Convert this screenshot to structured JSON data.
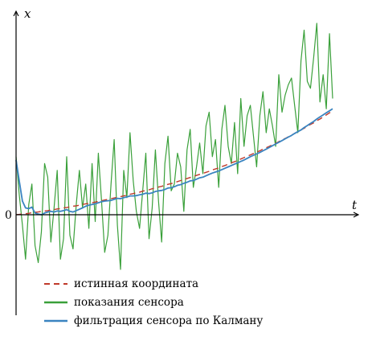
{
  "chart_data": {
    "type": "line",
    "xlabel": "t",
    "ylabel": "x",
    "origin_label": "0",
    "grid": false,
    "legend_position": "bottom-left",
    "colors": {
      "true": "#c0392b",
      "sensor": "#3aa03a",
      "filter": "#3a84c0"
    },
    "x": [
      0,
      1,
      2,
      3,
      4,
      5,
      6,
      7,
      8,
      9,
      10,
      11,
      12,
      13,
      14,
      15,
      16,
      17,
      18,
      19,
      20,
      21,
      22,
      23,
      24,
      25,
      26,
      27,
      28,
      29,
      30,
      31,
      32,
      33,
      34,
      35,
      36,
      37,
      38,
      39,
      40,
      41,
      42,
      43,
      44,
      45,
      46,
      47,
      48,
      49,
      50,
      51,
      52,
      53,
      54,
      55,
      56,
      57,
      58,
      59,
      60,
      61,
      62,
      63,
      64,
      65,
      66,
      67,
      68,
      69,
      70,
      71,
      72,
      73,
      74,
      75,
      76,
      77,
      78,
      79,
      80,
      81,
      82,
      83,
      84,
      85,
      86,
      87,
      88,
      89,
      90,
      91,
      92,
      93,
      94,
      95,
      96,
      97,
      98,
      99,
      100
    ],
    "series": [
      {
        "name": "истинная координата",
        "key": "true",
        "style": "dashed",
        "values": [
          0,
          0.01,
          0.02,
          0.03,
          0.04,
          0.06,
          0.07,
          0.08,
          0.1,
          0.11,
          0.12,
          0.14,
          0.15,
          0.17,
          0.18,
          0.2,
          0.21,
          0.23,
          0.25,
          0.26,
          0.28,
          0.3,
          0.32,
          0.33,
          0.35,
          0.37,
          0.39,
          0.41,
          0.43,
          0.45,
          0.47,
          0.49,
          0.51,
          0.53,
          0.55,
          0.57,
          0.6,
          0.62,
          0.64,
          0.66,
          0.69,
          0.71,
          0.73,
          0.76,
          0.78,
          0.81,
          0.83,
          0.86,
          0.89,
          0.91,
          0.94,
          0.97,
          1.0,
          1.03,
          1.06,
          1.09,
          1.12,
          1.15,
          1.18,
          1.21,
          1.24,
          1.27,
          1.31,
          1.34,
          1.37,
          1.41,
          1.44,
          1.48,
          1.52,
          1.55,
          1.59,
          1.63,
          1.67,
          1.71,
          1.75,
          1.79,
          1.83,
          1.87,
          1.92,
          1.96,
          2.0,
          2.05,
          2.09,
          2.14,
          2.19,
          2.23,
          2.28,
          2.33,
          2.38,
          2.43,
          2.48,
          2.53,
          2.59,
          2.64,
          2.69,
          2.75,
          2.8,
          2.86,
          2.92,
          2.98,
          3.03
        ]
      },
      {
        "name": "показания сенсора",
        "key": "sensor",
        "style": "solid",
        "values": [
          1.7,
          0.6,
          -0.3,
          -1.3,
          0.3,
          0.9,
          -0.9,
          -1.4,
          -0.5,
          1.5,
          1.1,
          -0.8,
          0.2,
          1.3,
          -1.3,
          -0.7,
          1.7,
          -0.6,
          -1.0,
          0.3,
          1.3,
          0.2,
          0.9,
          -0.4,
          1.5,
          -0.2,
          1.8,
          0.4,
          -1.1,
          -0.6,
          0.9,
          2.2,
          -0.3,
          -1.6,
          1.3,
          0.5,
          2.4,
          1.0,
          0.1,
          -0.4,
          0.7,
          1.8,
          -0.7,
          0.2,
          1.9,
          0.4,
          -0.8,
          1.5,
          2.3,
          0.7,
          0.9,
          1.8,
          1.4,
          0.1,
          1.9,
          2.5,
          0.8,
          1.4,
          2.1,
          1.2,
          2.6,
          3.0,
          1.7,
          2.2,
          0.8,
          2.5,
          3.2,
          2.0,
          1.5,
          2.7,
          1.2,
          3.4,
          2.0,
          2.9,
          3.2,
          2.3,
          1.4,
          2.9,
          3.6,
          2.4,
          3.1,
          2.6,
          2.0,
          4.1,
          3.0,
          3.5,
          3.8,
          4.0,
          3.2,
          2.4,
          4.5,
          5.4,
          3.9,
          3.7,
          4.6,
          5.6,
          3.3,
          4.1,
          3.1,
          5.3,
          3.4
        ]
      },
      {
        "name": "фильтрация сенсора по Калману",
        "key": "filter",
        "style": "solid",
        "values": [
          1.6,
          1.0,
          0.4,
          0.2,
          0.18,
          0.22,
          0.05,
          0.02,
          0.0,
          0.05,
          0.08,
          0.1,
          0.08,
          0.11,
          0.1,
          0.12,
          0.15,
          0.1,
          0.08,
          0.12,
          0.16,
          0.2,
          0.25,
          0.28,
          0.3,
          0.32,
          0.35,
          0.38,
          0.4,
          0.41,
          0.42,
          0.45,
          0.48,
          0.47,
          0.5,
          0.52,
          0.55,
          0.55,
          0.56,
          0.58,
          0.6,
          0.63,
          0.62,
          0.64,
          0.68,
          0.7,
          0.71,
          0.74,
          0.78,
          0.79,
          0.82,
          0.86,
          0.88,
          0.92,
          0.95,
          0.99,
          1.0,
          1.04,
          1.08,
          1.1,
          1.14,
          1.18,
          1.22,
          1.25,
          1.28,
          1.32,
          1.36,
          1.4,
          1.44,
          1.48,
          1.52,
          1.56,
          1.6,
          1.65,
          1.7,
          1.74,
          1.78,
          1.82,
          1.87,
          1.92,
          1.97,
          2.02,
          2.07,
          2.12,
          2.17,
          2.22,
          2.27,
          2.32,
          2.38,
          2.43,
          2.48,
          2.55,
          2.61,
          2.67,
          2.73,
          2.8,
          2.86,
          2.92,
          2.98,
          3.04,
          3.1
        ]
      }
    ],
    "legend": [
      {
        "key": "true",
        "label": "истинная координата"
      },
      {
        "key": "sensor",
        "label": "показания сенсора"
      },
      {
        "key": "filter",
        "label": "фильтрация сенсора по Калману"
      }
    ]
  }
}
